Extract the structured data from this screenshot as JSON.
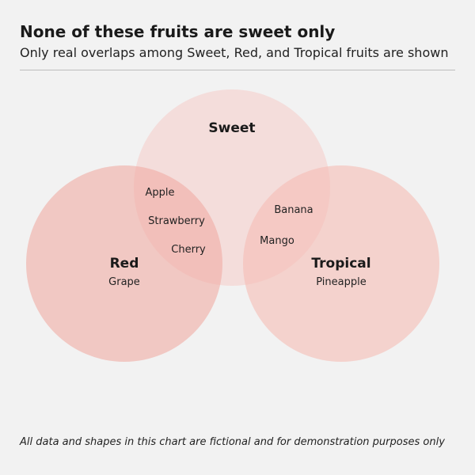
{
  "header": {
    "title": "None of these fruits are sweet only",
    "subtitle": "Only real overlaps among Sweet, Red, and Tropical fruits are shown"
  },
  "sets": [
    {
      "name": "Sweet",
      "color": "#f5cfcc",
      "opacity": 0.6
    },
    {
      "name": "Red",
      "color": "#f0aca4",
      "opacity": 0.6
    },
    {
      "name": "Tropical",
      "color": "#f5bcb4",
      "opacity": 0.6
    }
  ],
  "regions": {
    "red_only": [
      "Grape"
    ],
    "tropical_only": [
      "Pineapple"
    ],
    "sweet_and_red": [
      "Apple",
      "Strawberry",
      "Cherry"
    ],
    "sweet_and_tropical": [
      "Banana",
      "Mango"
    ]
  },
  "footnote": "All data and shapes in this chart are fictional and for demonstration purposes only"
}
